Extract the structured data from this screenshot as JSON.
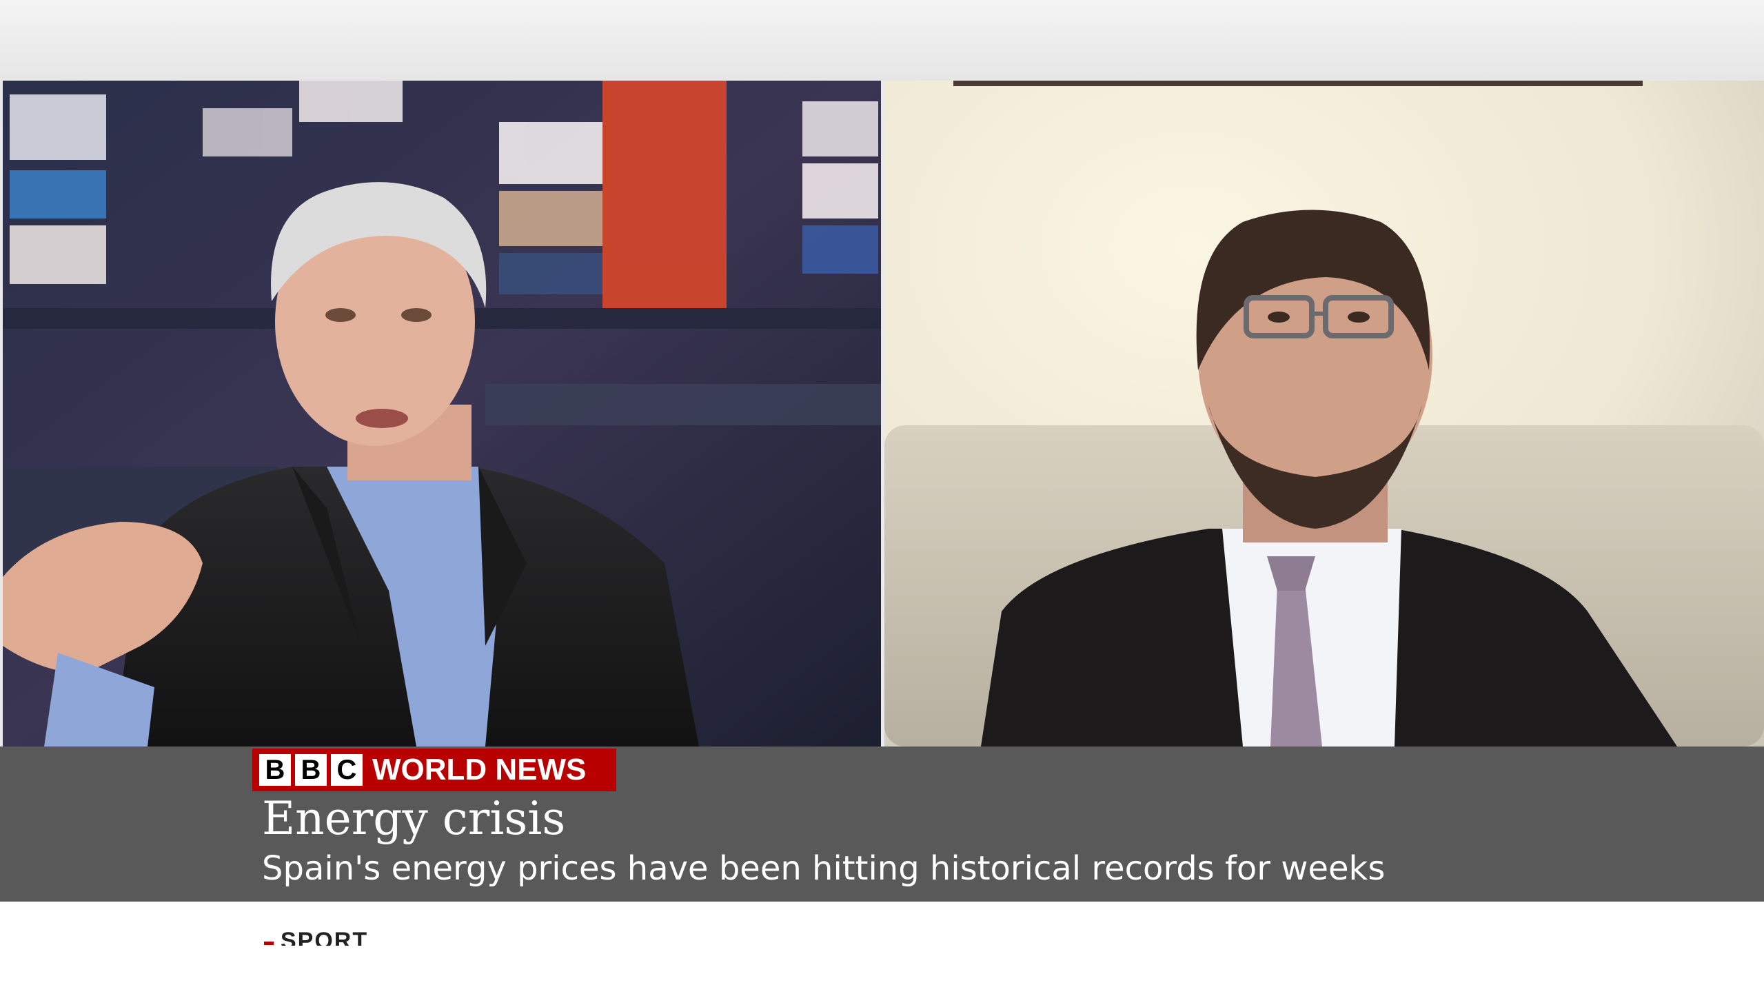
{
  "branding": {
    "letters": [
      "B",
      "B",
      "C"
    ],
    "channel": "WORLD NEWS",
    "color": "#b80000"
  },
  "caption": {
    "headline": "Energy crisis",
    "subheadline": "Spain's energy prices have been hitting historical records for weeks"
  },
  "ticker": {
    "label": "SPORT"
  },
  "colors": {
    "caption_background": "#595959",
    "text": "#ffffff"
  }
}
